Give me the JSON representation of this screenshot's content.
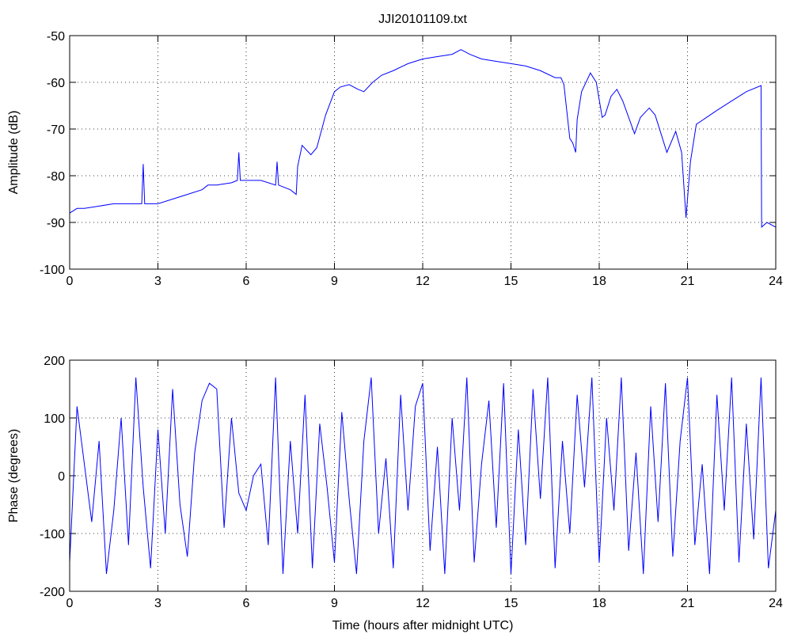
{
  "chart_data": [
    {
      "type": "line",
      "title": "JJI20101109.txt",
      "ylabel": "Amplitude (dB)",
      "color": "#0000ff",
      "grid": true,
      "x": [
        0,
        0.25,
        0.5,
        1,
        1.5,
        2,
        2.45,
        2.5,
        2.55,
        3,
        3.5,
        4,
        4.5,
        4.7,
        5,
        5.5,
        5.7,
        5.75,
        5.8,
        6,
        6.5,
        7,
        7.05,
        7.1,
        7.5,
        7.7,
        7.75,
        7.9,
        8.2,
        8.4,
        8.7,
        9,
        9.2,
        9.5,
        9.8,
        10,
        10.3,
        10.6,
        11,
        11.5,
        12,
        12.5,
        13,
        13.3,
        13.6,
        14,
        14.5,
        15,
        15.5,
        16,
        16.5,
        16.7,
        16.8,
        17,
        17.1,
        17.2,
        17.25,
        17.4,
        17.7,
        17.9,
        18.1,
        18.2,
        18.4,
        18.6,
        18.8,
        19.2,
        19.4,
        19.7,
        19.9,
        20.3,
        20.6,
        20.8,
        20.95,
        21.1,
        21.3,
        22,
        22.5,
        23,
        23.5,
        23.52,
        23.7,
        24
      ],
      "values": [
        -88,
        -87,
        -87,
        -86.5,
        -86,
        -86,
        -86,
        -77.5,
        -86,
        -86,
        -85,
        -84,
        -83,
        -82,
        -82,
        -81.5,
        -81,
        -75,
        -81,
        -81,
        -81,
        -82,
        -77,
        -82,
        -83,
        -84,
        -78,
        -73.5,
        -75.5,
        -74,
        -67,
        -62,
        -61,
        -60.5,
        -61.5,
        -62,
        -60,
        -58.5,
        -57.5,
        -56,
        -55,
        -54.5,
        -54,
        -53,
        -54,
        -55,
        -55.5,
        -56,
        -56.5,
        -57.5,
        -59,
        -59,
        -60.5,
        -72,
        -73,
        -75,
        -68,
        -62,
        -58,
        -60,
        -67.5,
        -67,
        -63,
        -61.5,
        -64,
        -71,
        -67.5,
        -65.5,
        -67,
        -75,
        -70.5,
        -75,
        -89,
        -77,
        -69,
        -66,
        -64,
        -62,
        -60.7,
        -91,
        -90,
        -91
      ],
      "xlim": [
        0,
        24
      ],
      "ylim": [
        -100,
        -50
      ],
      "xticks": [
        0,
        3,
        6,
        9,
        12,
        15,
        18,
        21,
        24
      ],
      "yticks": [
        -100,
        -90,
        -80,
        -70,
        -60,
        -50
      ]
    },
    {
      "type": "line",
      "xlabel": "Time (hours after midnight UTC)",
      "ylabel": "Phase (degrees)",
      "color": "#0000ff",
      "grid": true,
      "x": [
        0,
        0.25,
        0.5,
        0.75,
        1,
        1.25,
        1.5,
        1.75,
        2,
        2.25,
        2.5,
        2.75,
        3,
        3.25,
        3.5,
        3.75,
        4,
        4.25,
        4.5,
        4.75,
        5,
        5.25,
        5.5,
        5.75,
        6,
        6.25,
        6.5,
        6.75,
        7,
        7.25,
        7.5,
        7.75,
        8,
        8.25,
        8.5,
        8.75,
        9,
        9.25,
        9.5,
        9.75,
        10,
        10.25,
        10.5,
        10.75,
        11,
        11.25,
        11.5,
        11.75,
        12,
        12.25,
        12.5,
        12.75,
        13,
        13.25,
        13.5,
        13.75,
        14,
        14.25,
        14.5,
        14.75,
        15,
        15.25,
        15.5,
        15.75,
        16,
        16.25,
        16.5,
        16.75,
        17,
        17.25,
        17.5,
        17.75,
        18,
        18.25,
        18.5,
        18.75,
        19,
        19.25,
        19.5,
        19.75,
        20,
        20.25,
        20.5,
        20.75,
        21,
        21.25,
        21.5,
        21.75,
        22,
        22.25,
        22.5,
        22.75,
        23,
        23.25,
        23.5,
        23.75,
        24
      ],
      "values": [
        -150,
        120,
        20,
        -80,
        60,
        -170,
        -60,
        100,
        -120,
        170,
        -20,
        -160,
        80,
        -100,
        150,
        -50,
        -140,
        40,
        130,
        160,
        150,
        -90,
        100,
        -30,
        -60,
        0,
        20,
        -120,
        170,
        -170,
        60,
        -100,
        140,
        -160,
        90,
        -20,
        -150,
        110,
        -40,
        -170,
        60,
        170,
        -100,
        30,
        -160,
        140,
        -60,
        120,
        160,
        -130,
        50,
        -170,
        100,
        -60,
        170,
        -150,
        20,
        130,
        -90,
        160,
        -170,
        80,
        -120,
        150,
        -40,
        170,
        -160,
        60,
        -100,
        140,
        -20,
        170,
        -150,
        100,
        -60,
        170,
        -130,
        40,
        -170,
        120,
        -80,
        160,
        -140,
        60,
        170,
        -120,
        20,
        -170,
        140,
        -60,
        170,
        -150,
        90,
        -110,
        170,
        -160,
        -60
      ],
      "xlim": [
        0,
        24
      ],
      "ylim": [
        -200,
        200
      ],
      "xticks": [
        0,
        3,
        6,
        9,
        12,
        15,
        18,
        21,
        24
      ],
      "yticks": [
        -200,
        -100,
        0,
        100,
        200
      ]
    }
  ]
}
